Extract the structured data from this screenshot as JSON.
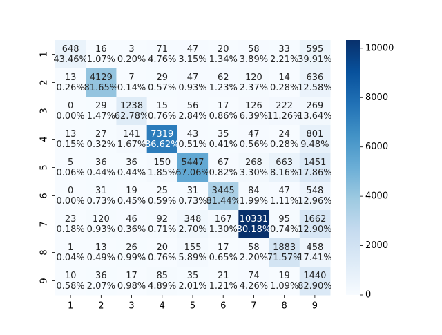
{
  "chart_data": {
    "type": "heatmap",
    "title": "",
    "xlabel": "",
    "ylabel": "",
    "x_categories": [
      "1",
      "2",
      "3",
      "4",
      "5",
      "6",
      "7",
      "8",
      "9"
    ],
    "y_categories": [
      "1",
      "2",
      "3",
      "4",
      "5",
      "6",
      "7",
      "8",
      "9"
    ],
    "values": [
      [
        648,
        16,
        3,
        71,
        47,
        20,
        58,
        33,
        595
      ],
      [
        13,
        4129,
        7,
        29,
        47,
        62,
        120,
        14,
        636
      ],
      [
        0,
        29,
        1238,
        15,
        56,
        17,
        126,
        222,
        269
      ],
      [
        13,
        27,
        141,
        7319,
        43,
        35,
        47,
        24,
        801
      ],
      [
        5,
        36,
        36,
        150,
        5447,
        67,
        268,
        663,
        1451
      ],
      [
        0,
        31,
        19,
        25,
        31,
        3445,
        84,
        47,
        548
      ],
      [
        23,
        120,
        46,
        92,
        348,
        167,
        10331,
        95,
        1662
      ],
      [
        1,
        13,
        26,
        20,
        155,
        17,
        58,
        1883,
        458
      ],
      [
        10,
        36,
        17,
        85,
        35,
        21,
        74,
        19,
        1440
      ]
    ],
    "percent_labels": [
      [
        "43.46%",
        "1.07%",
        "0.20%",
        "4.76%",
        "3.15%",
        "1.34%",
        "3.89%",
        "2.21%",
        "39.91%"
      ],
      [
        "0.26%",
        "81.65%",
        "0.14%",
        "0.57%",
        "0.93%",
        "1.23%",
        "2.37%",
        "0.28%",
        "12.58%"
      ],
      [
        "0.00%",
        "1.47%",
        "62.78%",
        "0.76%",
        "2.84%",
        "0.86%",
        "6.39%",
        "11.26%",
        "13.64%"
      ],
      [
        "0.15%",
        "0.32%",
        "1.67%",
        "86.62%",
        "0.51%",
        "0.41%",
        "0.56%",
        "0.28%",
        "9.48%"
      ],
      [
        "0.06%",
        "0.44%",
        "0.44%",
        "1.85%",
        "67.06%",
        "0.82%",
        "3.30%",
        "8.16%",
        "17.86%"
      ],
      [
        "0.00%",
        "0.73%",
        "0.45%",
        "0.59%",
        "0.73%",
        "81.44%",
        "1.99%",
        "1.11%",
        "12.96%"
      ],
      [
        "0.18%",
        "0.93%",
        "0.36%",
        "0.71%",
        "2.70%",
        "1.30%",
        "80.18%",
        "0.74%",
        "12.90%"
      ],
      [
        "0.04%",
        "0.49%",
        "0.99%",
        "0.76%",
        "5.89%",
        "0.65%",
        "2.20%",
        "71.57%",
        "17.41%"
      ],
      [
        "0.58%",
        "2.07%",
        "0.98%",
        "4.89%",
        "2.01%",
        "1.21%",
        "4.26%",
        "1.09%",
        "82.90%"
      ]
    ],
    "colorbar": {
      "range": [
        0,
        10331
      ],
      "ticks": [
        0,
        2000,
        4000,
        6000,
        8000,
        10000
      ],
      "colormap": "Blues",
      "low_color": "#f7fbff",
      "high_color": "#08306b"
    },
    "grid": false,
    "legend": "colorbar-right"
  }
}
